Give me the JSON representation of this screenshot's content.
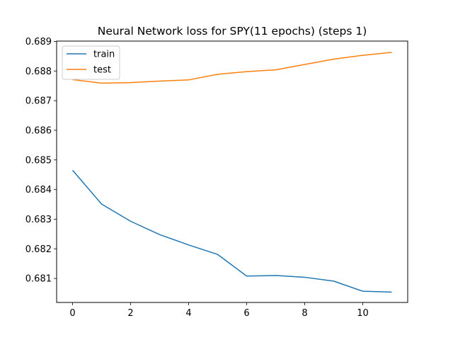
{
  "chart_data": {
    "type": "line",
    "title": "Neural Network loss for SPY(11 epochs) (steps 1)",
    "xlabel": "",
    "ylabel": "",
    "x": [
      0,
      1,
      2,
      3,
      4,
      5,
      6,
      7,
      8,
      9,
      10,
      11
    ],
    "xlim": [
      -0.55,
      11.55
    ],
    "ylim": [
      0.68019,
      0.68901
    ],
    "xticks": [
      0,
      2,
      4,
      6,
      8,
      10
    ],
    "yticks": [
      0.681,
      0.682,
      0.683,
      0.684,
      0.685,
      0.686,
      0.687,
      0.688,
      0.689
    ],
    "ytick_labels": [
      "0.681",
      "0.682",
      "0.683",
      "0.684",
      "0.685",
      "0.686",
      "0.687",
      "0.688",
      "0.689"
    ],
    "grid": false,
    "legend_position": "top-left",
    "series": [
      {
        "name": "train",
        "color": "#1f77b4",
        "values": [
          0.68465,
          0.68351,
          0.68293,
          0.68248,
          0.68213,
          0.68181,
          0.68108,
          0.6811,
          0.68104,
          0.68091,
          0.68057,
          0.68054
        ]
      },
      {
        "name": "test",
        "color": "#ff7f0e",
        "values": [
          0.68771,
          0.68759,
          0.68761,
          0.68766,
          0.6877,
          0.68789,
          0.68798,
          0.68804,
          0.68822,
          0.6884,
          0.68853,
          0.68863
        ]
      }
    ]
  }
}
